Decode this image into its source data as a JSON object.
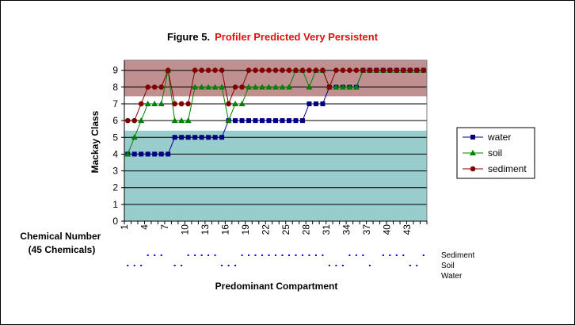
{
  "chart_data": {
    "type": "line",
    "title": "Figure 5.",
    "subtitle": "Profiler Predicted Very Persistent",
    "title_color": "#000000",
    "subtitle_color": "#e01010",
    "xlabel": "Chemical Number (45 Chemicals)",
    "xlabel_lines": [
      "Chemical Number",
      "(45 Chemicals)"
    ],
    "ylabel": "Mackay Class",
    "ylim": [
      0,
      9.6
    ],
    "y_ticks": [
      "0",
      "1",
      "2",
      "3",
      "4",
      "5",
      "6",
      "7",
      "8",
      "9"
    ],
    "x_tick_labels": [
      "1",
      "4",
      "7",
      "10",
      "13",
      "16",
      "19",
      "22",
      "25",
      "28",
      "31",
      "34",
      "37",
      "40",
      "43"
    ],
    "x_tick_values": [
      1,
      4,
      7,
      10,
      13,
      16,
      19,
      22,
      25,
      28,
      31,
      34,
      37,
      40,
      43
    ],
    "x": [
      1,
      2,
      3,
      4,
      5,
      6,
      7,
      8,
      9,
      10,
      11,
      12,
      13,
      14,
      15,
      16,
      17,
      18,
      19,
      20,
      21,
      22,
      23,
      24,
      25,
      26,
      27,
      28,
      29,
      30,
      31,
      32,
      33,
      34,
      35,
      36,
      37,
      38,
      39,
      40,
      41,
      42,
      43,
      44,
      45
    ],
    "series": [
      {
        "name": "water",
        "color": "#000080",
        "marker": "square",
        "values": [
          4,
          4,
          4,
          4,
          4,
          4,
          4,
          5,
          5,
          5,
          5,
          5,
          5,
          5,
          5,
          6,
          6,
          6,
          6,
          6,
          6,
          6,
          6,
          6,
          6,
          6,
          6,
          7,
          7,
          7,
          8,
          8,
          8,
          8,
          8,
          9,
          9,
          9,
          9,
          9,
          9,
          9,
          9,
          9,
          9
        ]
      },
      {
        "name": "soil",
        "color": "#008000",
        "marker": "triangle",
        "values": [
          4,
          5,
          6,
          7,
          7,
          7,
          9,
          6,
          6,
          6,
          8,
          8,
          8,
          8,
          8,
          6,
          7,
          7,
          8,
          8,
          8,
          8,
          8,
          8,
          8,
          9,
          9,
          8,
          9,
          9,
          8,
          8,
          8,
          8,
          8,
          9,
          9,
          9,
          9,
          9,
          9,
          9,
          9,
          9,
          9
        ]
      },
      {
        "name": "sediment",
        "color": "#800000",
        "marker": "circle",
        "values": [
          6,
          6,
          7,
          8,
          8,
          8,
          9,
          7,
          7,
          7,
          9,
          9,
          9,
          9,
          9,
          7,
          8,
          8,
          9,
          9,
          9,
          9,
          9,
          9,
          9,
          9,
          9,
          9,
          9,
          9,
          8,
          9,
          9,
          9,
          9,
          9,
          9,
          9,
          9,
          9,
          9,
          9,
          9,
          9,
          9
        ]
      }
    ],
    "bands": [
      {
        "from": 0,
        "to": 5.4,
        "fill": "#99cccc"
      },
      {
        "from": 7.45,
        "to": 9.6,
        "fill": "#c09090"
      }
    ],
    "grid": true,
    "legend_position": "right",
    "compartment_rows": [
      {
        "name": "Sediment",
        "color": "#0000ff",
        "chemicals": [
          4,
          5,
          6,
          10,
          11,
          12,
          13,
          14,
          18,
          19,
          20,
          21,
          22,
          23,
          24,
          25,
          26,
          27,
          28,
          29,
          30,
          34,
          35,
          36,
          39,
          40,
          41,
          42,
          45
        ]
      },
      {
        "name": "Soil",
        "color": "#0000ff",
        "chemicals": [
          1,
          2,
          3,
          8,
          9,
          15,
          16,
          17,
          31,
          32,
          33,
          37,
          43,
          44
        ]
      },
      {
        "name": "Water",
        "color": "#0000ff",
        "chemicals": []
      }
    ],
    "compartment_axis_label": "Predominant Compartment"
  }
}
